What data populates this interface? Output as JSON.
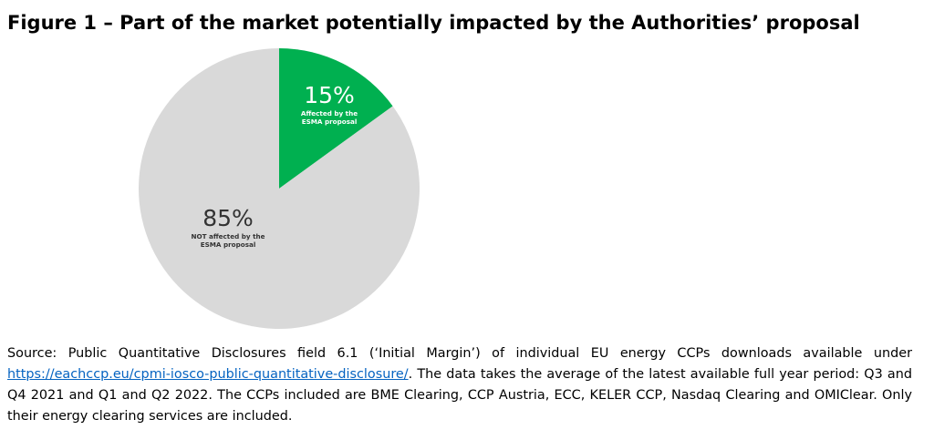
{
  "title": "Figure 1 – Part of the market potentially impacted by the Authorities’ proposal",
  "chart_data": {
    "type": "pie",
    "slices": [
      {
        "percent_label": "15%",
        "description": [
          "Affected by the",
          "ESMA proposal"
        ],
        "value": 15,
        "color": "#00b050",
        "text_color": "#ffffff"
      },
      {
        "percent_label": "85%",
        "description": [
          "NOT affected by the",
          "ESMA proposal"
        ],
        "value": 85,
        "color": "#d9d9d9",
        "text_color": "#333333"
      }
    ]
  },
  "source": {
    "prefix": "Source: Public Quantitative Disclosures field 6.1 (‘Initial Margin’) of individual EU energy CCPs downloads available under ",
    "link_text": "https://eachccp.eu/cpmi-iosco-public-quantitative-disclosure/",
    "suffix": ". The data takes the average of the latest available full year period: Q3 and Q4 2021 and Q1 and Q2 2022. The CCPs included are BME Clearing, CCP Austria, ECC, KELER CCP, Nasdaq Clearing and OMIClear. Only their energy clearing services are included."
  }
}
